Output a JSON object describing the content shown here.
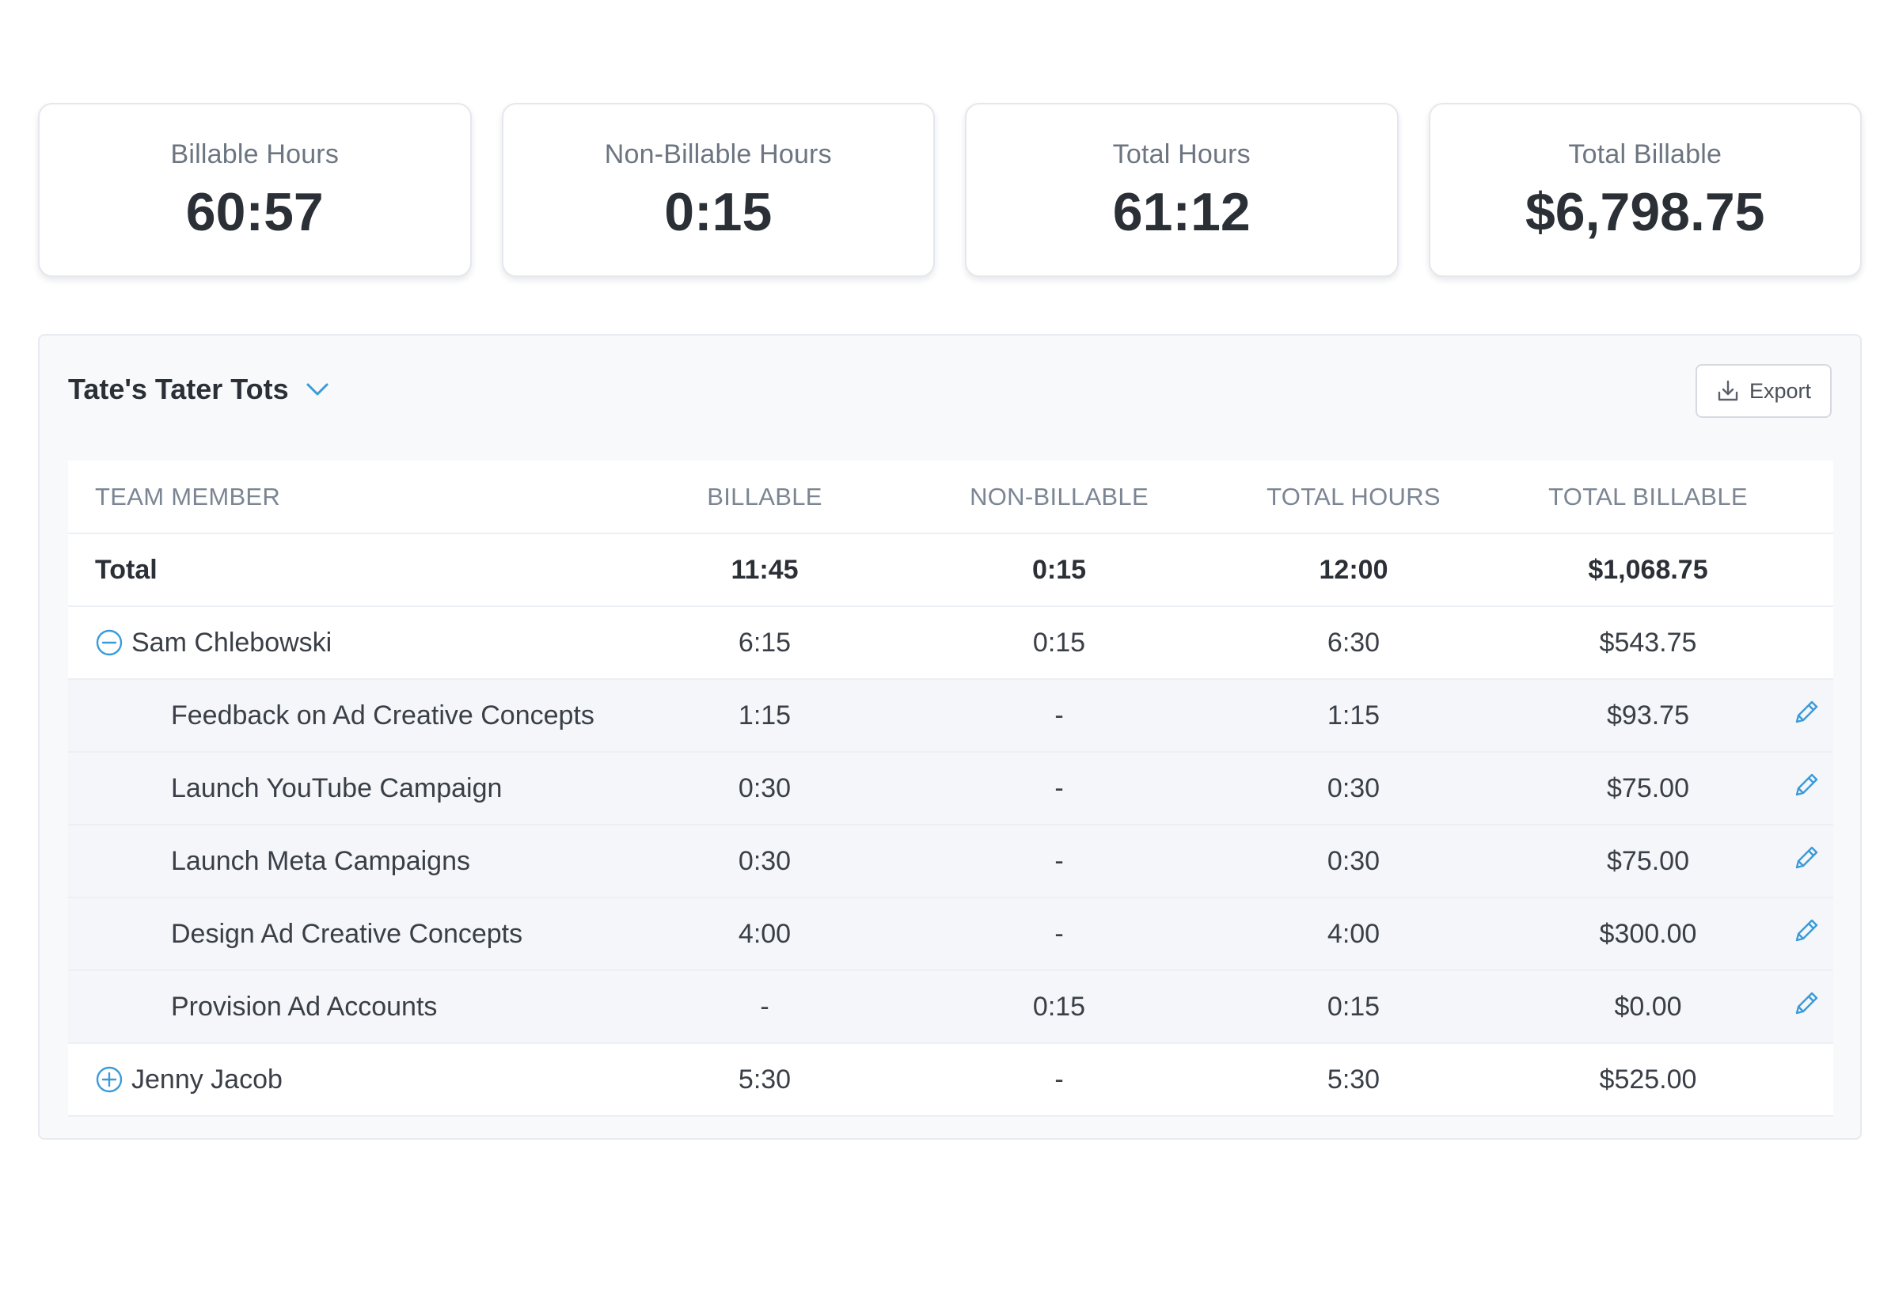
{
  "stats": [
    {
      "label": "Billable Hours",
      "value": "60:57"
    },
    {
      "label": "Non-Billable Hours",
      "value": "0:15"
    },
    {
      "label": "Total Hours",
      "value": "61:12"
    },
    {
      "label": "Total Billable",
      "value": "$6,798.75"
    }
  ],
  "panel": {
    "client_name": "Tate's Tater Tots",
    "export_label": "Export"
  },
  "table": {
    "headers": [
      "TEAM MEMBER",
      "BILLABLE",
      "NON-BILLABLE",
      "TOTAL HOURS",
      "TOTAL BILLABLE"
    ],
    "total": {
      "name": "Total",
      "billable": "11:45",
      "non_billable": "0:15",
      "total_hours": "12:00",
      "total_billable": "$1,068.75"
    },
    "members": [
      {
        "name": "Sam Chlebowski",
        "billable": "6:15",
        "non_billable": "0:15",
        "total_hours": "6:30",
        "total_billable": "$543.75",
        "expanded": true,
        "tasks": [
          {
            "name": "Feedback on Ad Creative Concepts",
            "billable": "1:15",
            "non_billable": "-",
            "total_hours": "1:15",
            "total_billable": "$93.75"
          },
          {
            "name": "Launch YouTube Campaign",
            "billable": "0:30",
            "non_billable": "-",
            "total_hours": "0:30",
            "total_billable": "$75.00"
          },
          {
            "name": "Launch Meta Campaigns",
            "billable": "0:30",
            "non_billable": "-",
            "total_hours": "0:30",
            "total_billable": "$75.00"
          },
          {
            "name": "Design Ad Creative Concepts",
            "billable": "4:00",
            "non_billable": "-",
            "total_hours": "4:00",
            "total_billable": "$300.00"
          },
          {
            "name": "Provision Ad Accounts",
            "billable": "-",
            "non_billable": "0:15",
            "total_hours": "0:15",
            "total_billable": "$0.00"
          }
        ]
      },
      {
        "name": "Jenny Jacob",
        "billable": "5:30",
        "non_billable": "-",
        "total_hours": "5:30",
        "total_billable": "$525.00",
        "expanded": false,
        "tasks": []
      }
    ]
  },
  "colors": {
    "accent": "#3a9bd9",
    "text": "#2b2f36",
    "muted": "#6c7580"
  },
  "icons": {
    "expand": "plus-circle-icon",
    "collapse": "minus-circle-icon",
    "edit": "pencil-icon",
    "export": "download-icon",
    "dropdown": "chevron-down-icon"
  }
}
